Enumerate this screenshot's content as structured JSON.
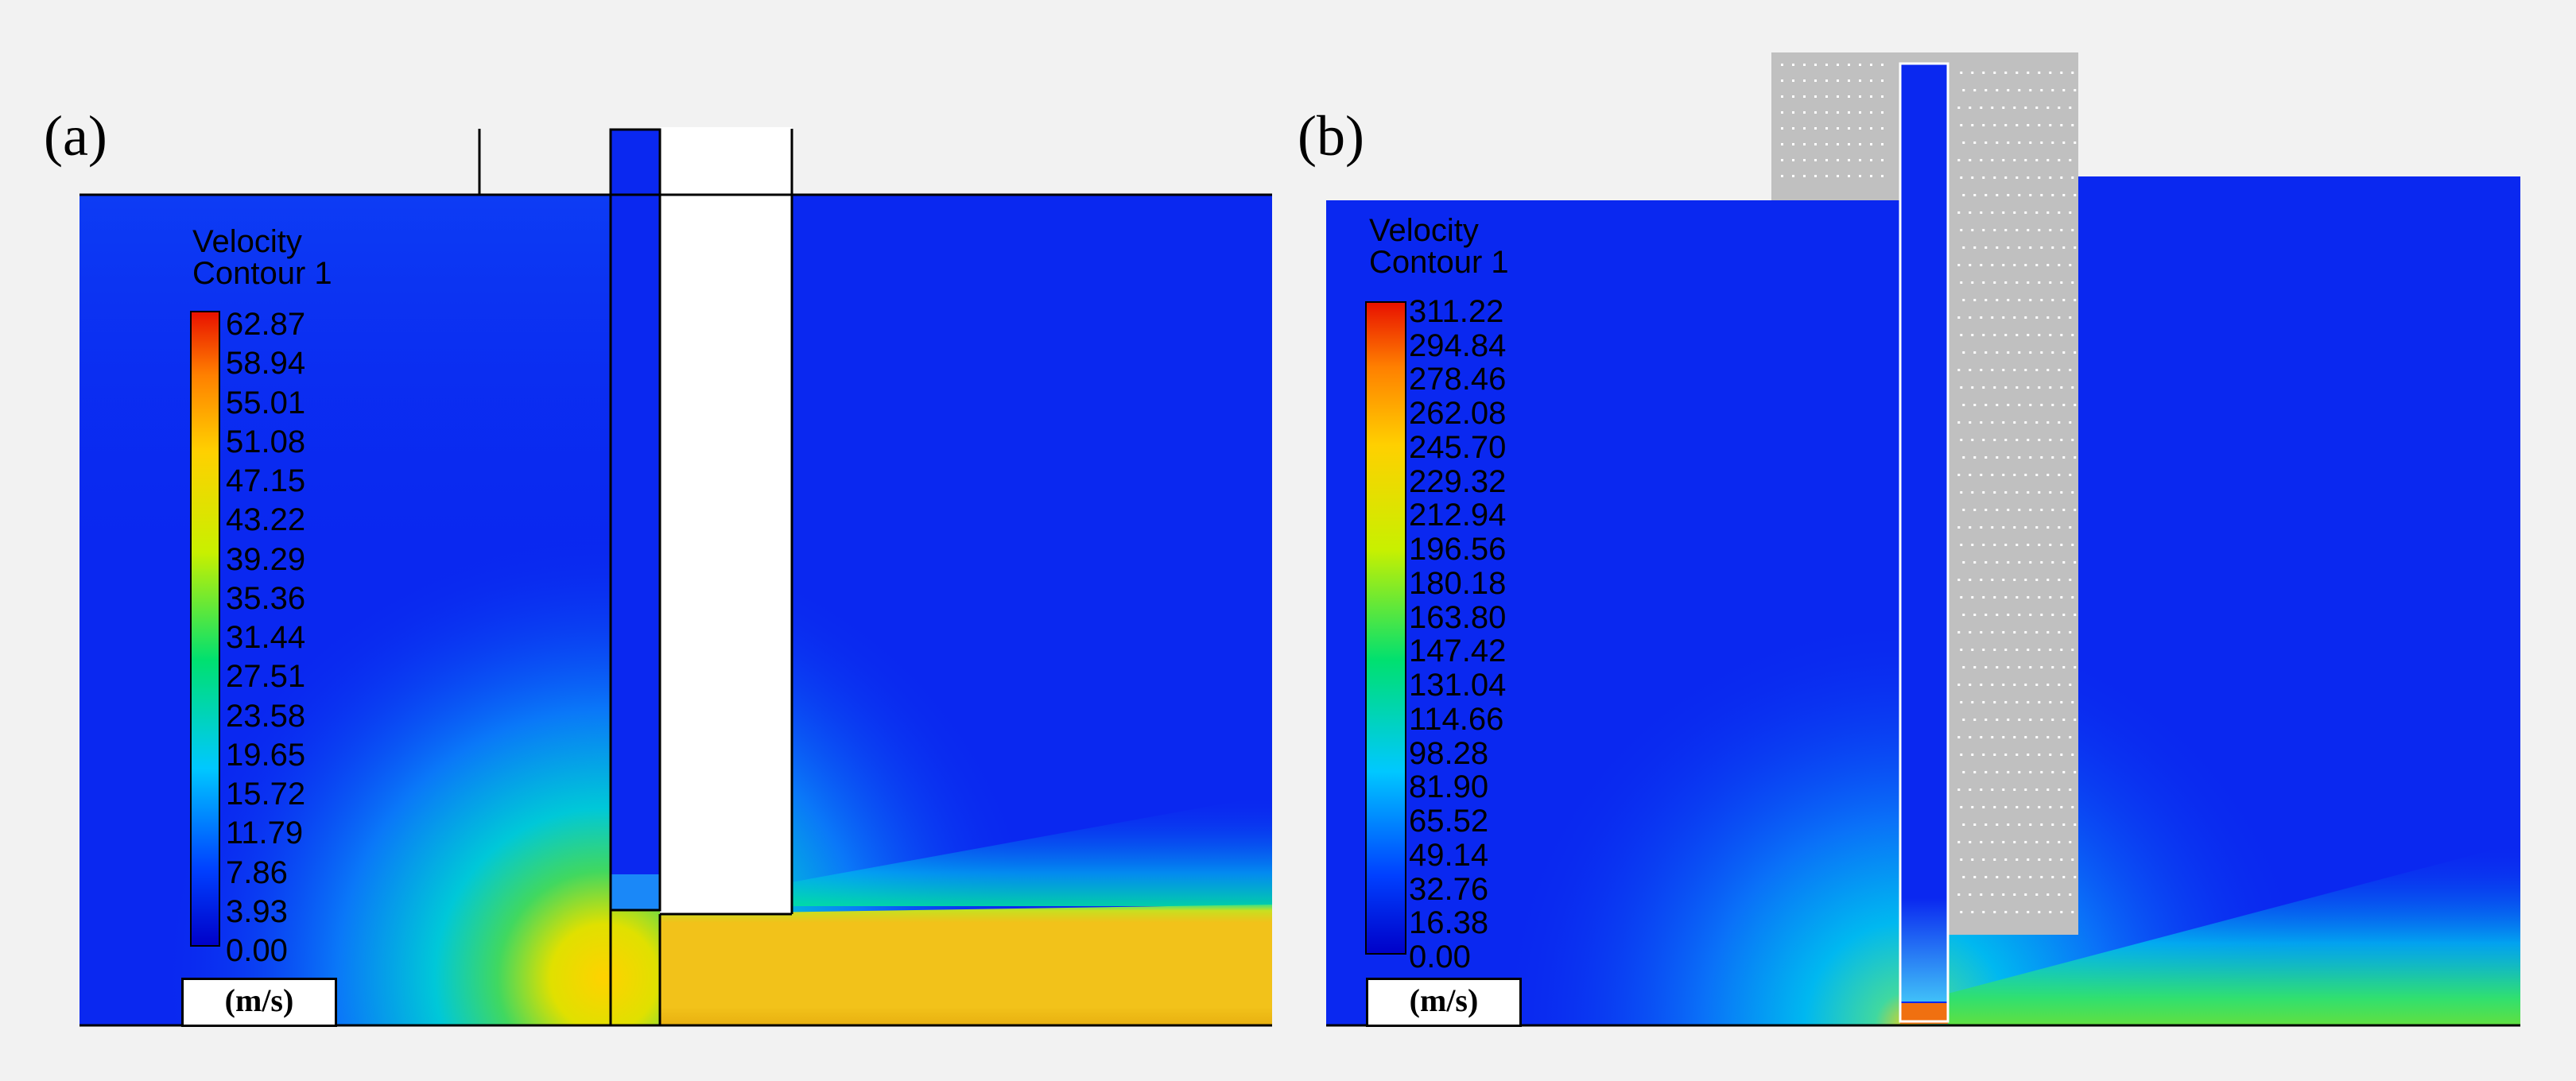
{
  "panels": [
    {
      "label": "(a)",
      "legend": {
        "title_line1": "Velocity",
        "title_line2": "Contour 1",
        "ticks": [
          "62.87",
          "58.94",
          "55.01",
          "51.08",
          "47.15",
          "43.22",
          "39.29",
          "35.36",
          "31.44",
          "27.51",
          "23.58",
          "19.65",
          "15.72",
          "11.79",
          "7.86",
          "3.93",
          "0.00"
        ],
        "unit": "(m/s)"
      }
    },
    {
      "label": "(b)",
      "legend": {
        "title_line1": "Velocity",
        "title_line2": "Contour 1",
        "ticks": [
          "311.22",
          "294.84",
          "278.46",
          "262.08",
          "245.70",
          "229.32",
          "212.94",
          "196.56",
          "180.18",
          "163.80",
          "147.42",
          "131.04",
          "114.66",
          "98.28",
          "81.90",
          "65.52",
          "49.14",
          "32.76",
          "16.38",
          "0.00"
        ],
        "unit": "(m/s)"
      }
    }
  ],
  "colors": {
    "background": "#f2f2f2",
    "field_blue": "#0a28f0",
    "jet_yellow": "#f2c21a",
    "solid_grey": "#c0c0c0"
  }
}
